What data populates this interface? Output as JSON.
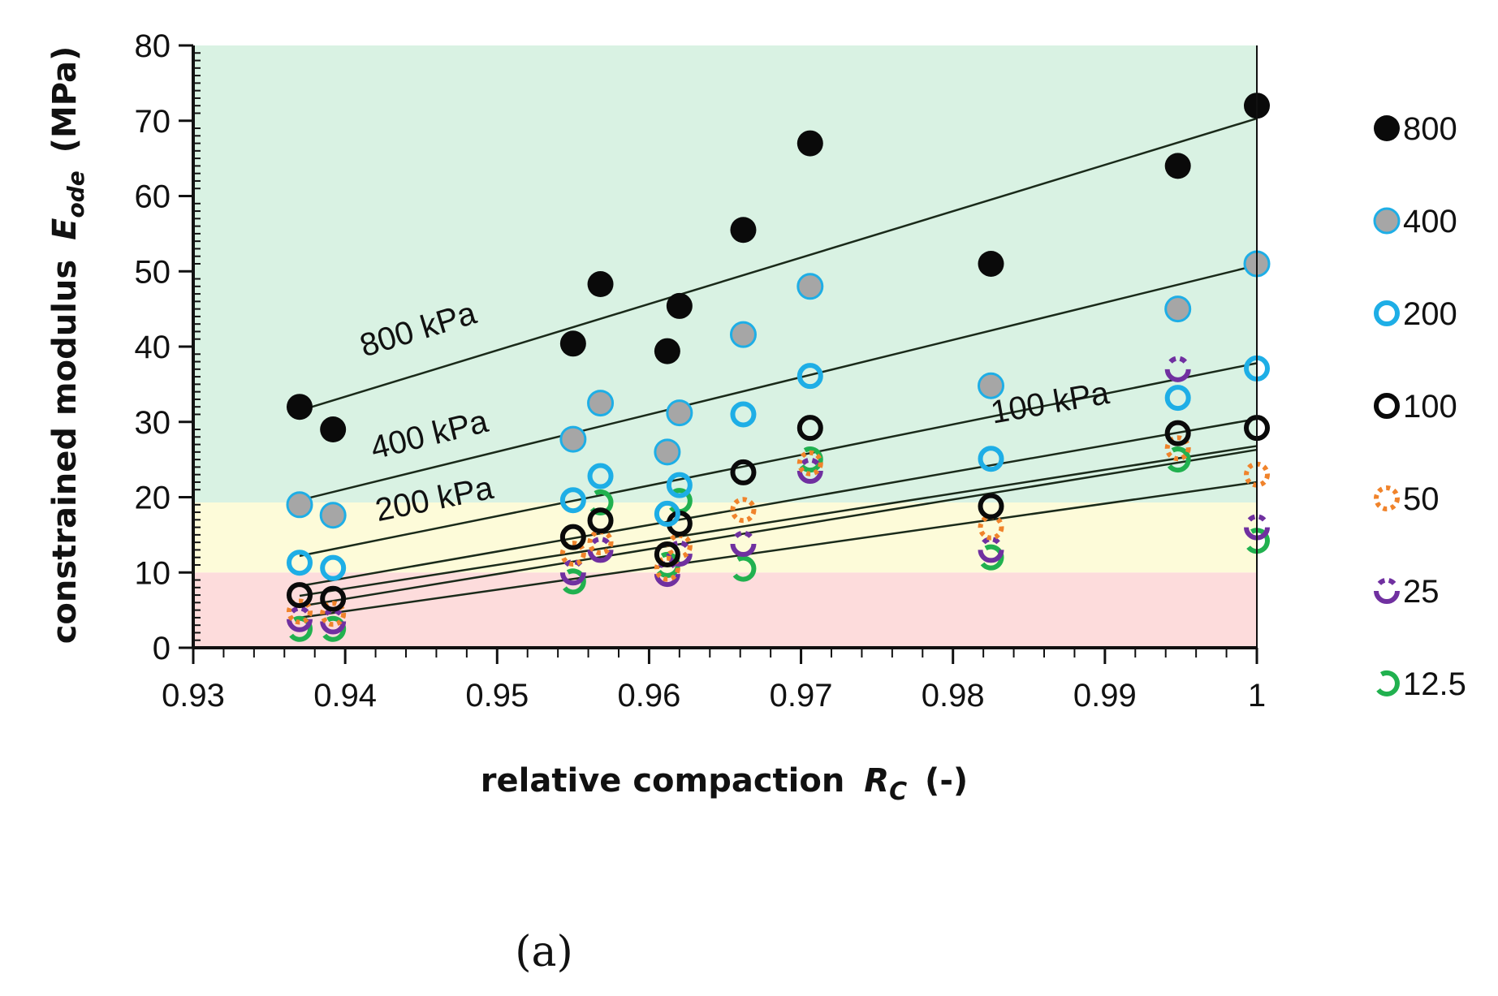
{
  "chart_data": {
    "type": "scatter",
    "title": "",
    "xlabel": "relative compaction",
    "xlabel_symbol": "R",
    "xlabel_subscript": "C",
    "xlabel_unit": "(-)",
    "ylabel": "constrained modulus",
    "ylabel_symbol": "E",
    "ylabel_subscript": "ode",
    "ylabel_unit": "(MPa)",
    "xlim": [
      0.93,
      1.0
    ],
    "ylim": [
      0,
      80
    ],
    "xticks": [
      "0.93",
      "0.94",
      "0.95",
      "0.96",
      "0.97",
      "0.98",
      "0.99",
      "1"
    ],
    "yticks": [
      "0",
      "10",
      "20",
      "30",
      "40",
      "50",
      "60",
      "70",
      "80"
    ],
    "grid": false,
    "legend_position": "right",
    "panel_label": "(a)",
    "background_bands": [
      {
        "from": 0,
        "to": 10,
        "color": "#fddcdc"
      },
      {
        "from": 10,
        "to": 19.3,
        "color": "#fdfbd9"
      },
      {
        "from": 19.3,
        "to": 80,
        "color": "#d9f2e3"
      }
    ],
    "series": [
      {
        "name": "800",
        "marker": "filled",
        "fill": "#0a0a0a",
        "stroke": "#0a0a0a",
        "x": [
          0.937,
          0.9392,
          0.955,
          0.9568,
          0.9612,
          0.962,
          0.9662,
          0.9706,
          0.9825,
          0.9948,
          1.0
        ],
        "y": [
          32,
          29,
          40.4,
          48.3,
          39.4,
          45.4,
          55.5,
          67,
          51,
          64,
          72
        ]
      },
      {
        "name": "400",
        "marker": "filled-ring",
        "fill": "#a6a6a6",
        "stroke": "#1eaee6",
        "x": [
          0.937,
          0.9392,
          0.955,
          0.9568,
          0.9612,
          0.962,
          0.9662,
          0.9706,
          0.9825,
          0.9948,
          1.0
        ],
        "y": [
          19,
          17.6,
          27.7,
          32.5,
          26,
          31.2,
          41.6,
          48,
          34.8,
          45,
          51
        ]
      },
      {
        "name": "200",
        "marker": "ring",
        "fill": "none",
        "stroke": "#1eaee6",
        "x": [
          0.937,
          0.9392,
          0.955,
          0.9568,
          0.9612,
          0.962,
          0.9662,
          0.9706,
          0.9825,
          0.9948,
          1.0
        ],
        "y": [
          11.3,
          10.6,
          19.6,
          22.8,
          17.8,
          21.6,
          31,
          36.1,
          25.1,
          33.2,
          37.1
        ]
      },
      {
        "name": "100",
        "marker": "ring",
        "fill": "none",
        "stroke": "#0a0a0a",
        "x": [
          0.937,
          0.9392,
          0.955,
          0.9568,
          0.9612,
          0.962,
          0.9662,
          0.9706,
          0.9825,
          0.9948,
          1.0
        ],
        "y": [
          7,
          6.5,
          14.7,
          16.9,
          12.4,
          16.5,
          23.3,
          29.2,
          18.8,
          28.5,
          29.2
        ]
      },
      {
        "name": "50",
        "marker": "dotted-ring",
        "fill": "none",
        "stroke": "#f0832b",
        "x": [
          0.937,
          0.9392,
          0.955,
          0.9568,
          0.9612,
          0.962,
          0.9662,
          0.9706,
          0.9825,
          0.9948,
          1.0
        ],
        "y": [
          4.8,
          4.5,
          12.5,
          14,
          10.5,
          13.5,
          18.3,
          24.5,
          16,
          26.5,
          23
        ]
      },
      {
        "name": "25",
        "marker": "dashed-ring",
        "fill": "none",
        "stroke": "#7030a0",
        "x": [
          0.937,
          0.9392,
          0.955,
          0.9568,
          0.9612,
          0.962,
          0.9662,
          0.9706,
          0.9825,
          0.9948,
          1.0
        ],
        "y": [
          3.8,
          3.5,
          10,
          13,
          9.8,
          12.5,
          13.8,
          23.5,
          13,
          37,
          16
        ]
      },
      {
        "name": "12.5",
        "marker": "half-ring",
        "fill": "none",
        "stroke": "#21b14f",
        "x": [
          0.937,
          0.9392,
          0.955,
          0.9568,
          0.9612,
          0.962,
          0.9662,
          0.9706,
          0.9825,
          0.9948,
          1.0
        ],
        "y": [
          2.5,
          2.5,
          8.8,
          19.3,
          11,
          19.5,
          10.5,
          25,
          12,
          25,
          14.2
        ]
      }
    ],
    "trendlines": [
      {
        "label": "800 kPa",
        "x": [
          0.937,
          1.0
        ],
        "y": [
          31.5,
          70.3
        ]
      },
      {
        "label": "400 kPa",
        "x": [
          0.937,
          1.0
        ],
        "y": [
          19.6,
          50.8
        ]
      },
      {
        "label": "200 kPa",
        "x": [
          0.937,
          1.0
        ],
        "y": [
          12.2,
          37.8
        ]
      },
      {
        "label": "100 kPa",
        "x": [
          0.937,
          1.0
        ],
        "y": [
          8.2,
          30.4
        ]
      },
      {
        "label": "",
        "x": [
          0.937,
          1.0
        ],
        "y": [
          6.9,
          26.8
        ]
      },
      {
        "label": "",
        "x": [
          0.937,
          1.0
        ],
        "y": [
          5.5,
          26.3
        ]
      },
      {
        "label": "",
        "x": [
          0.937,
          1.0
        ],
        "y": [
          4.0,
          22.0
        ]
      }
    ]
  }
}
